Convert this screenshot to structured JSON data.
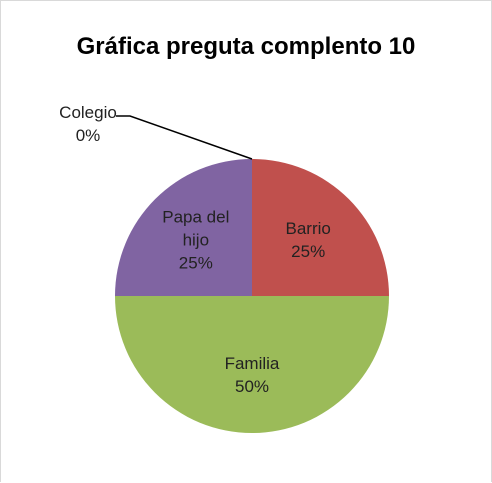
{
  "chart_data": {
    "type": "pie",
    "title": "Gráfica preguta complento 10",
    "categories": [
      "Barrio",
      "Familia",
      "Papa del hijo",
      "Colegio"
    ],
    "values": [
      25,
      50,
      25,
      0
    ],
    "value_labels": [
      "25%",
      "50%",
      "25%",
      "0%"
    ],
    "colors": [
      "#c0504d",
      "#9bbb59",
      "#8064a2",
      "#4f81bd"
    ]
  }
}
